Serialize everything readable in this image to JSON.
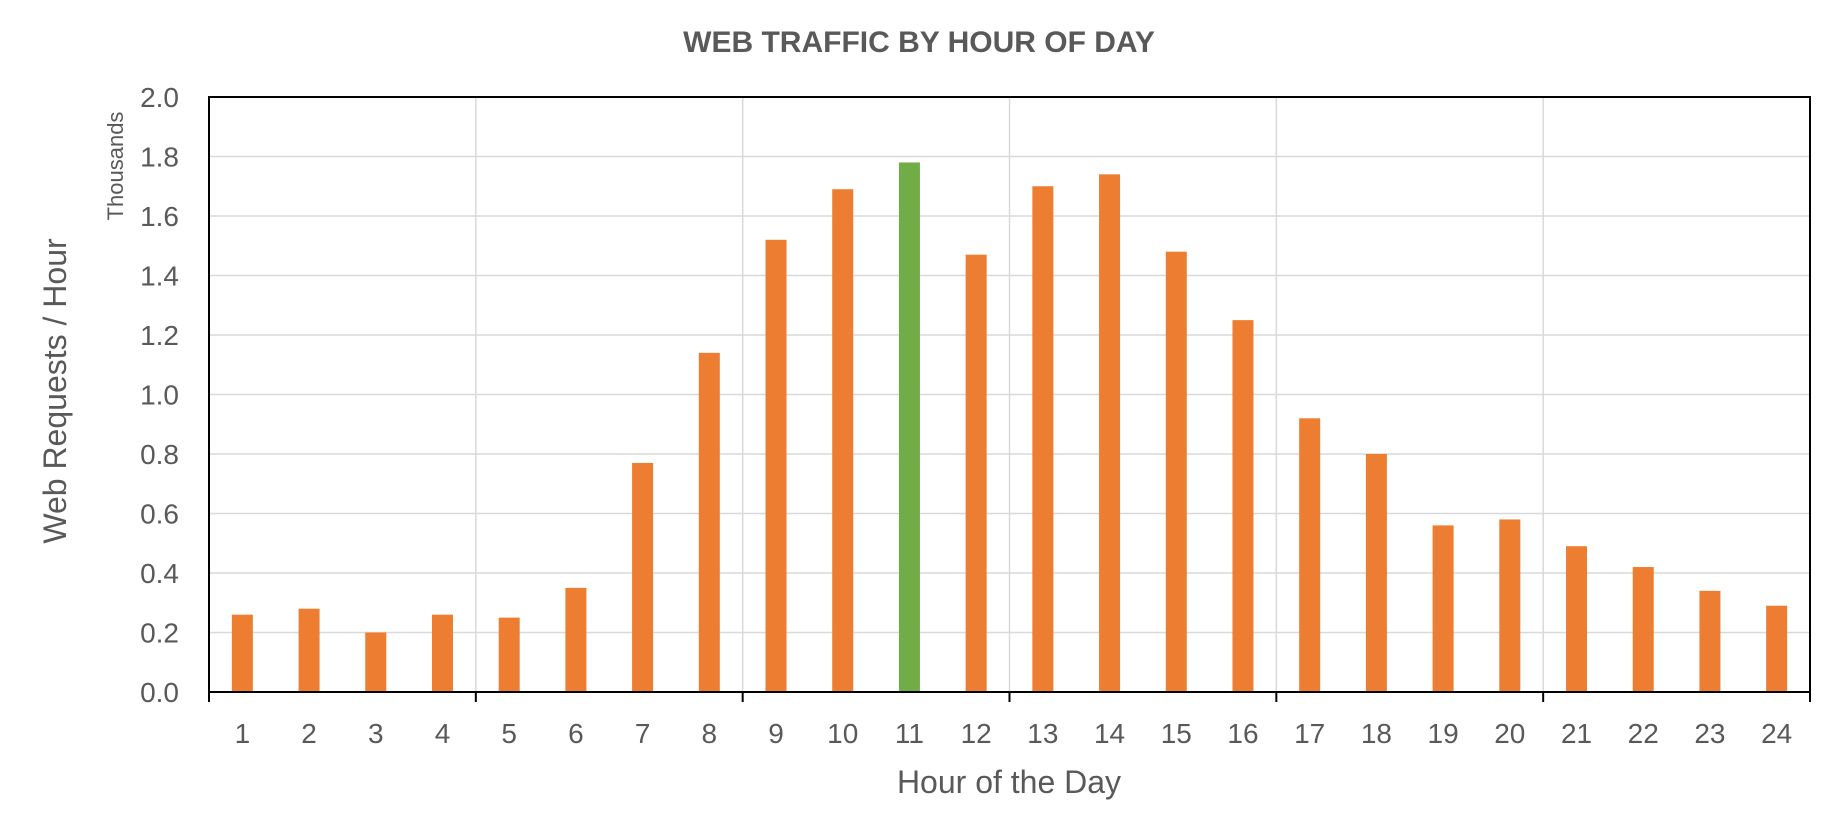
{
  "chart_data": {
    "type": "bar",
    "title": "WEB TRAFFIC BY HOUR OF DAY",
    "xlabel": "Hour of the Day",
    "ylabel": "Web Requests / Hour",
    "y_units_label": "Thousands",
    "categories": [
      "1",
      "2",
      "3",
      "4",
      "5",
      "6",
      "7",
      "8",
      "9",
      "10",
      "11",
      "12",
      "13",
      "14",
      "15",
      "16",
      "17",
      "18",
      "19",
      "20",
      "21",
      "22",
      "23",
      "24"
    ],
    "series": [
      {
        "values": [
          0.26,
          0.28,
          0.2,
          0.26,
          0.25,
          0.35,
          0.77,
          1.14,
          1.52,
          1.69,
          1.78,
          1.47,
          1.7,
          1.74,
          1.48,
          1.25,
          0.92,
          0.8,
          0.56,
          0.58,
          0.49,
          0.42,
          0.34,
          0.29
        ]
      }
    ],
    "highlight_category": "11",
    "ylim": [
      0,
      2.0
    ],
    "yticks": [
      "0.0",
      "0.2",
      "0.4",
      "0.6",
      "0.8",
      "1.0",
      "1.2",
      "1.4",
      "1.6",
      "1.8",
      "2.0"
    ],
    "ytick_values": [
      0,
      0.2,
      0.4,
      0.6,
      0.8,
      1.0,
      1.2,
      1.4,
      1.6,
      1.8,
      2.0
    ],
    "vertical_gridlines_every": 4,
    "grid": true,
    "legend": "none",
    "colors": {
      "bar": "#ED7D31",
      "highlight_bar": "#70AD47",
      "gridline": "#D9D9D9",
      "axis": "#000000",
      "text": "#595959"
    }
  }
}
